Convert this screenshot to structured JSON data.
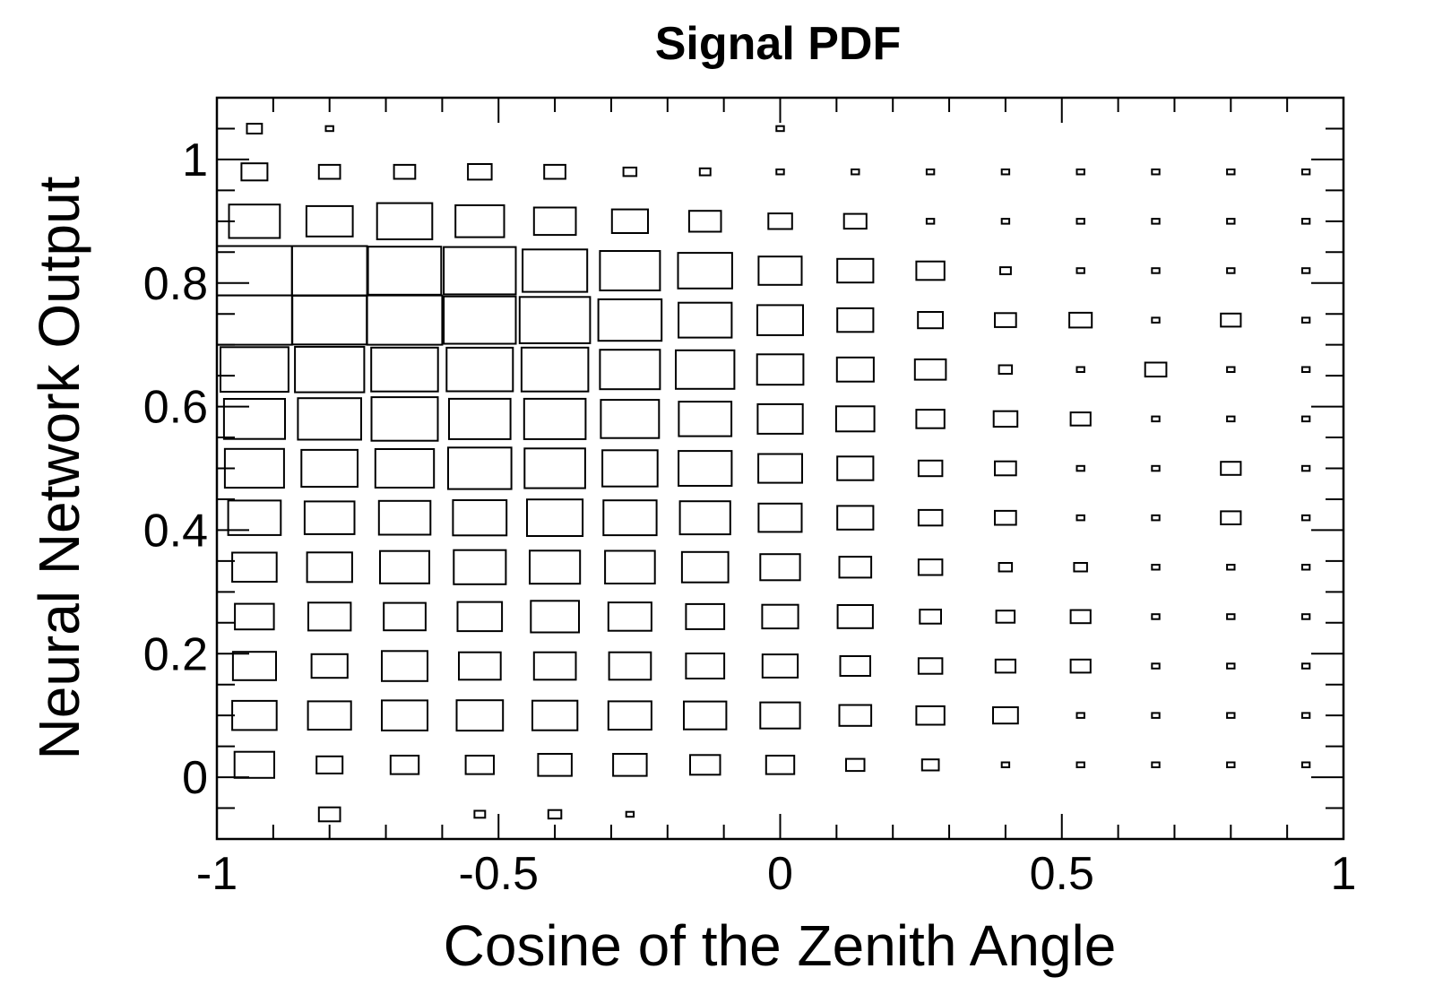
{
  "chart_data": {
    "type": "heatmap",
    "style": "box",
    "title": "Signal PDF",
    "xlabel": "Cosine of the Zenith Angle",
    "ylabel": "Neural Network Output",
    "xlim": [
      -1,
      1
    ],
    "ylim": [
      -0.1,
      1.1
    ],
    "x_ticks": [
      -1,
      -0.5,
      0,
      0.5,
      1
    ],
    "x_tick_labels": [
      "-1",
      "-0.5",
      "0",
      "0.5",
      "1"
    ],
    "y_ticks": [
      0,
      0.2,
      0.4,
      0.6,
      0.8,
      1
    ],
    "y_tick_labels": [
      "0",
      "0.2",
      "0.4",
      "0.6",
      "0.8",
      "1"
    ],
    "x_bin_centers": [
      -0.9333,
      -0.8,
      -0.6667,
      -0.5333,
      -0.4,
      -0.2667,
      -0.1333,
      0,
      0.1333,
      0.2667,
      0.4,
      0.5333,
      0.6667,
      0.8,
      0.9333
    ],
    "y_bin_centers": [
      1.05,
      0.98,
      0.9,
      0.82,
      0.74,
      0.66,
      0.58,
      0.5,
      0.42,
      0.34,
      0.26,
      0.18,
      0.1,
      0.02,
      -0.06
    ],
    "values": [
      [
        0.04,
        0.01,
        0,
        0,
        0,
        0,
        0,
        0.01,
        0,
        0,
        0,
        0,
        0,
        0,
        0
      ],
      [
        0.12,
        0.08,
        0.08,
        0.1,
        0.08,
        0.03,
        0.02,
        0.01,
        0.01,
        0.01,
        0.01,
        0.01,
        0.01,
        0.01,
        0.01
      ],
      [
        0.46,
        0.38,
        0.54,
        0.42,
        0.31,
        0.23,
        0.18,
        0.1,
        0.09,
        0.01,
        0.01,
        0.01,
        0.01,
        0.01,
        0.01
      ],
      [
        1.0,
        1.0,
        0.95,
        0.92,
        0.74,
        0.64,
        0.52,
        0.33,
        0.23,
        0.14,
        0.02,
        0.01,
        0.01,
        0.01,
        0.01
      ],
      [
        1.0,
        0.98,
        1.0,
        0.92,
        0.88,
        0.71,
        0.5,
        0.37,
        0.23,
        0.11,
        0.08,
        0.09,
        0.01,
        0.07,
        0.01
      ],
      [
        0.82,
        0.85,
        0.79,
        0.78,
        0.79,
        0.64,
        0.61,
        0.38,
        0.24,
        0.17,
        0.03,
        0.01,
        0.08,
        0.01,
        0.01
      ],
      [
        0.66,
        0.71,
        0.78,
        0.67,
        0.67,
        0.6,
        0.49,
        0.36,
        0.26,
        0.14,
        0.1,
        0.07,
        0.01,
        0.01,
        0.01
      ],
      [
        0.62,
        0.56,
        0.61,
        0.71,
        0.65,
        0.54,
        0.5,
        0.34,
        0.23,
        0.1,
        0.08,
        0.01,
        0.01,
        0.07,
        0.01
      ],
      [
        0.49,
        0.44,
        0.47,
        0.51,
        0.55,
        0.5,
        0.45,
        0.33,
        0.23,
        0.1,
        0.08,
        0.01,
        0.01,
        0.07,
        0.01
      ],
      [
        0.35,
        0.36,
        0.43,
        0.48,
        0.45,
        0.44,
        0.38,
        0.28,
        0.18,
        0.1,
        0.03,
        0.03,
        0.01,
        0.01,
        0.01
      ],
      [
        0.27,
        0.32,
        0.31,
        0.35,
        0.41,
        0.33,
        0.26,
        0.23,
        0.22,
        0.08,
        0.06,
        0.07,
        0.01,
        0.01,
        0.01
      ],
      [
        0.33,
        0.23,
        0.37,
        0.31,
        0.31,
        0.31,
        0.26,
        0.22,
        0.16,
        0.1,
        0.07,
        0.07,
        0.01,
        0.01,
        0.01
      ],
      [
        0.35,
        0.33,
        0.37,
        0.38,
        0.36,
        0.33,
        0.32,
        0.28,
        0.18,
        0.14,
        0.11,
        0.01,
        0.01,
        0.01,
        0.01
      ],
      [
        0.28,
        0.12,
        0.14,
        0.14,
        0.2,
        0.2,
        0.16,
        0.14,
        0.06,
        0.05,
        0.01,
        0.01,
        0.01,
        0.01,
        0.01
      ],
      [
        0,
        0.08,
        0,
        0.02,
        0.03,
        0.01,
        0,
        0,
        0,
        0,
        0,
        0,
        0,
        0,
        0
      ]
    ],
    "grid": false,
    "legend": "none"
  }
}
